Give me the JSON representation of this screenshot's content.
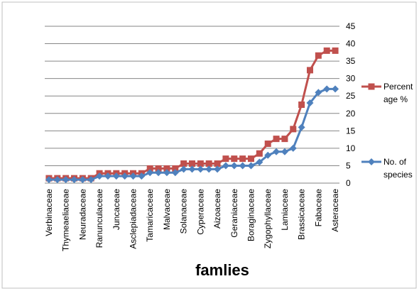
{
  "chart_data": {
    "type": "line",
    "title": "",
    "xlabel": "famlies",
    "ylabel": "",
    "ylim": [
      0,
      45
    ],
    "y_ticks": [
      0,
      5,
      10,
      15,
      20,
      25,
      30,
      35,
      40,
      45
    ],
    "grid": true,
    "legend_position": "right",
    "categories": [
      "Verbinaceae",
      "",
      "Thymeaeliaceae",
      "",
      "Neuradaceae",
      "",
      "Ranunculaceae",
      "",
      "Juncaceae",
      "",
      "Asclepiadaceae",
      "",
      "Tamaricaceae",
      "",
      "Malvaceae",
      "",
      "Solanaceae",
      "",
      "Cyperaceae",
      "",
      "Aizoaceae",
      "",
      "Geraniaceae",
      "",
      "Boraginaceae",
      "",
      "Zygophyllaceae",
      "",
      "Lamiaceae",
      "",
      "Brassicaceae",
      "",
      "Fabaceae",
      "",
      "Asteraceae"
    ],
    "series": [
      {
        "name": "Percent age %",
        "legend_lines": [
          "Percent",
          "age %"
        ],
        "color": "#C0504D",
        "marker": "square",
        "values": [
          1.4,
          1.4,
          1.4,
          1.4,
          1.4,
          1.4,
          2.8,
          2.8,
          2.8,
          2.8,
          2.8,
          2.8,
          4.2,
          4.2,
          4.2,
          4.2,
          5.6,
          5.6,
          5.6,
          5.6,
          5.6,
          7.0,
          7.0,
          7.0,
          7.0,
          8.5,
          11.3,
          12.7,
          12.7,
          15.5,
          22.5,
          32.4,
          36.6,
          38.0,
          38.0
        ]
      },
      {
        "name": "No. of species",
        "legend_lines": [
          "No. of",
          "species"
        ],
        "color": "#4F81BD",
        "marker": "diamond",
        "values": [
          1,
          1,
          1,
          1,
          1,
          1,
          2,
          2,
          2,
          2,
          2,
          2,
          3,
          3,
          3,
          3,
          4,
          4,
          4,
          4,
          4,
          5,
          5,
          5,
          5,
          6,
          8,
          9,
          9,
          10,
          16,
          23,
          26,
          27,
          27
        ]
      }
    ]
  }
}
